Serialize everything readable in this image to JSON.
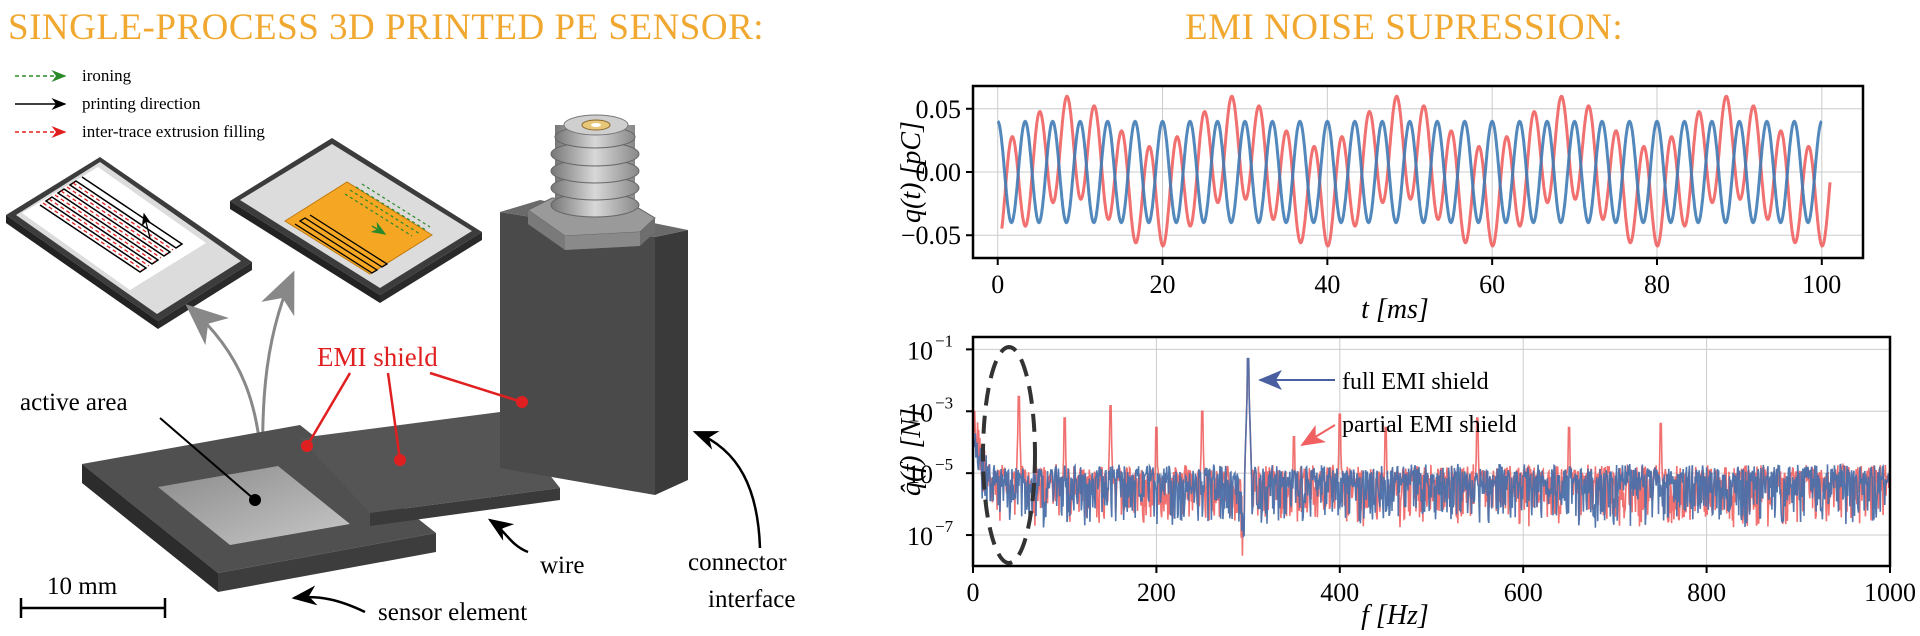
{
  "titles": {
    "left": "SINGLE-PROCESS 3D PRINTED PE SENSOR:",
    "right": "EMI NOISE SUPRESSION:"
  },
  "legend": [
    {
      "label": "ironing",
      "color": "#2a8a2a",
      "style": "dashed"
    },
    {
      "label": "printing direction",
      "color": "#000000",
      "style": "solid"
    },
    {
      "label": "inter-trace extrusion filling",
      "color": "#e02020",
      "style": "dashed"
    }
  ],
  "diagram_labels": {
    "emi_shield": "EMI shield",
    "active_area": "active area",
    "wire": "wire",
    "connector_line1": "connector",
    "connector_line2": "interface",
    "sensor_element": "sensor element",
    "scale_bar": "10 mm"
  },
  "colors": {
    "title": "#f0a830",
    "full_shield": "#3f7bb5",
    "partial_shield": "#f06060",
    "emi_red": "#e02020"
  },
  "chart_data": [
    {
      "type": "line",
      "ylabel": "q(t) [pC]",
      "xlabel": "t [ms]",
      "xlim": [
        -3,
        105
      ],
      "ylim": [
        -0.068,
        0.068
      ],
      "xticks": [
        "0",
        "20",
        "40",
        "60",
        "80",
        "100"
      ],
      "yticks": [
        "0.05",
        "0.00",
        "−0.05"
      ],
      "grid": true,
      "series": [
        {
          "signal": "sine",
          "frequency_hz": 300,
          "amplitude": 0.04,
          "x_range_ms": [
            0,
            100
          ]
        },
        {
          "signal": "sine with 50 Hz interference",
          "frequency_hz": 300,
          "amplitude": 0.04,
          "interference_hz": 50,
          "interference_amplitude": 0.02,
          "x_range_ms": [
            0.5,
            101
          ]
        }
      ]
    },
    {
      "type": "line",
      "ylabel": "q̂(f) [N]",
      "xlabel": "f [Hz]",
      "xlim": [
        0,
        1000
      ],
      "ylim_log10": [
        -8,
        -0.6
      ],
      "xticks": [
        "0",
        "200",
        "400",
        "600",
        "800",
        "1000"
      ],
      "yticks": [
        "10",
        "10",
        "10",
        "10"
      ],
      "ytick_exponents": [
        "−1",
        "−3",
        "−5",
        "−7"
      ],
      "yscale": "log",
      "grid": true,
      "annotations": [
        "full EMI shield",
        "partial EMI shield"
      ],
      "peaks": {
        "full": [
          {
            "f": 300,
            "value": 0.05
          }
        ],
        "partial": [
          {
            "f": 50,
            "value": 0.003
          },
          {
            "f": 100,
            "value": 0.0006
          },
          {
            "f": 150,
            "value": 0.0015
          },
          {
            "f": 200,
            "value": 0.0003
          },
          {
            "f": 250,
            "value": 0.001
          },
          {
            "f": 300,
            "value": 0.05
          },
          {
            "f": 350,
            "value": 0.00015
          },
          {
            "f": 400,
            "value": 0.0008
          },
          {
            "f": 450,
            "value": 0.0003
          },
          {
            "f": 550,
            "value": 0.0006
          },
          {
            "f": 650,
            "value": 0.0003
          },
          {
            "f": 750,
            "value": 0.0004
          }
        ]
      },
      "noise_floor": 1e-05
    }
  ]
}
